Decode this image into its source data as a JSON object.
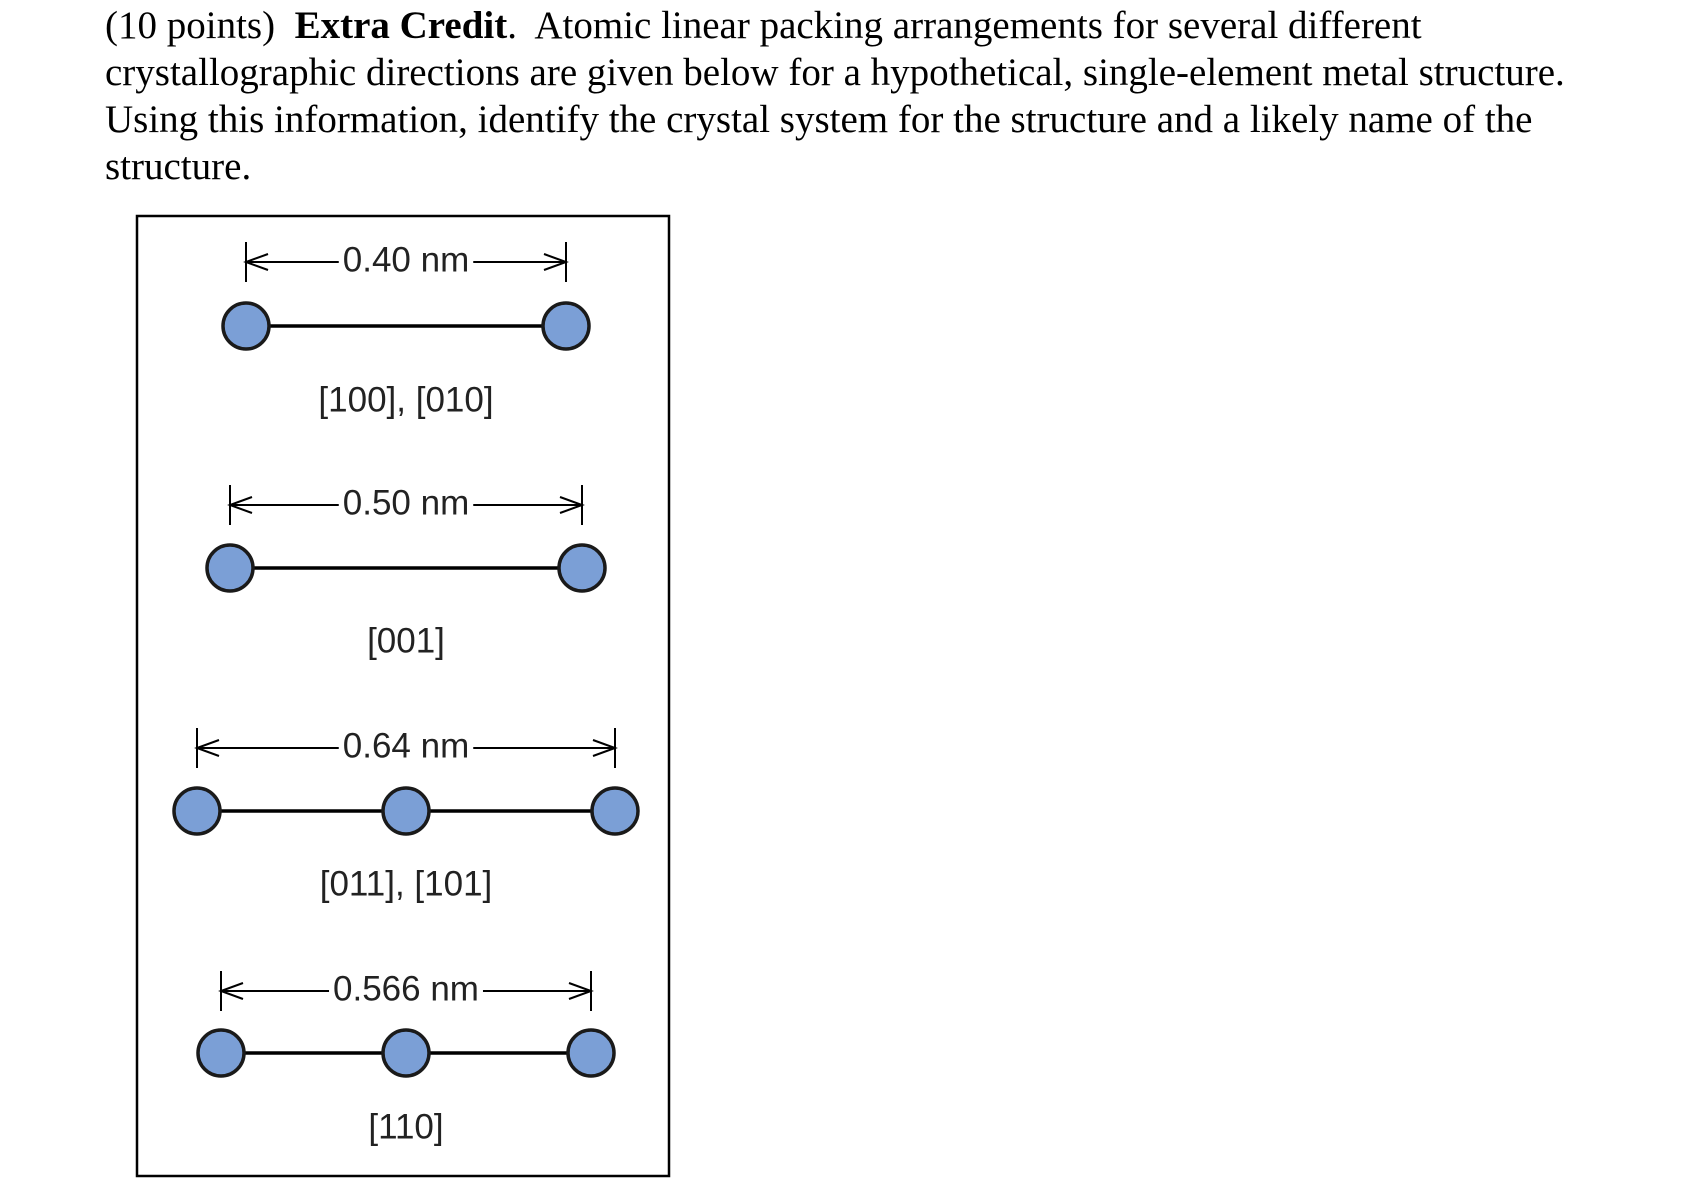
{
  "question": {
    "points": "(10 points)",
    "title": "Extra Credit",
    "title_suffix": ".",
    "body": "Atomic linear packing arrangements for several different crystallographic directions are given below for a hypothetical, single-element metal structure.  Using this information, identify the crystal system for the structure and a likely name of the structure."
  },
  "colors": {
    "atom_fill": "#7B9FD6",
    "atom_stroke": "#1a1a1a",
    "bond": "#000000",
    "frame": "#000000"
  },
  "figure": {
    "arrangements": [
      {
        "distance_label": "0.40 nm",
        "directions": "[100], [010]",
        "atom_count": 2
      },
      {
        "distance_label": "0.50 nm",
        "directions": "[001]",
        "atom_count": 2
      },
      {
        "distance_label": "0.64 nm",
        "directions": "[011], [101]",
        "atom_count": 3
      },
      {
        "distance_label": "0.566 nm",
        "directions": "[110]",
        "atom_count": 3
      }
    ]
  }
}
